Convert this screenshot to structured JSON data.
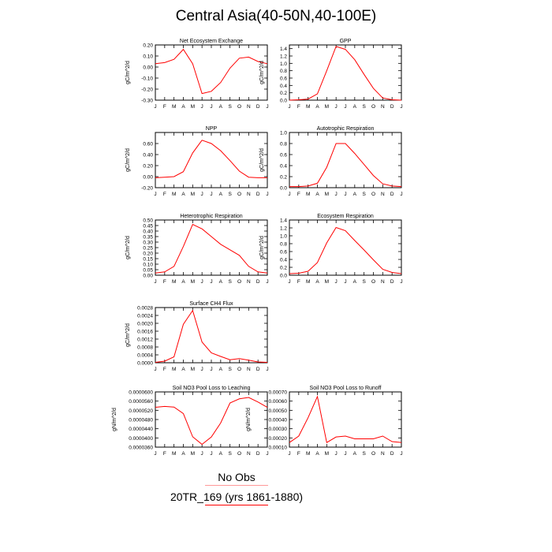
{
  "title": "Central Asia(40-50N,40-100E)",
  "month_labels": [
    "J",
    "F",
    "M",
    "A",
    "M",
    "J",
    "J",
    "A",
    "S",
    "O",
    "N",
    "D",
    "J"
  ],
  "legend": {
    "obs_label": "No Obs",
    "model_label": "20TR_169 (yrs 1861-1880)",
    "line_color": "#ff0000"
  },
  "chart_data": [
    {
      "type": "line",
      "title": "Net Ecosystem Exchange",
      "ylabel": "gC/m^2/d",
      "ylim": [
        -0.3,
        0.2
      ],
      "yticks": [
        -0.3,
        -0.2,
        -0.1,
        0.0,
        0.1,
        0.2
      ],
      "ytick_labels": [
        "-0.30",
        "-0.20",
        "-0.10",
        "0.00",
        "0.10",
        "0.20"
      ],
      "x": [
        1,
        2,
        3,
        4,
        5,
        6,
        7,
        8,
        9,
        10,
        11,
        12,
        13
      ],
      "series": [
        {
          "values": [
            0.03,
            0.04,
            0.07,
            0.16,
            0.03,
            -0.24,
            -0.22,
            -0.14,
            -0.01,
            0.08,
            0.09,
            0.05,
            0.03
          ]
        }
      ]
    },
    {
      "type": "line",
      "title": "GPP",
      "ylabel": "gC/m^2/d",
      "ylim": [
        0.0,
        1.5
      ],
      "yticks": [
        0.0,
        0.2,
        0.4,
        0.6,
        0.8,
        1.0,
        1.2,
        1.4
      ],
      "ytick_labels": [
        "0.0",
        "0.2",
        "0.4",
        "0.6",
        "0.8",
        "1.0",
        "1.2",
        "1.4"
      ],
      "x": [
        1,
        2,
        3,
        4,
        5,
        6,
        7,
        8,
        9,
        10,
        11,
        12,
        13
      ],
      "series": [
        {
          "values": [
            0.0,
            0.01,
            0.03,
            0.17,
            0.8,
            1.46,
            1.38,
            1.1,
            0.7,
            0.32,
            0.06,
            0.01,
            0.0
          ]
        }
      ]
    },
    {
      "type": "line",
      "title": "NPP",
      "ylabel": "gC/m^2/d",
      "ylim": [
        -0.2,
        0.8
      ],
      "yticks": [
        -0.2,
        0.0,
        0.2,
        0.4,
        0.6
      ],
      "ytick_labels": [
        "-0.20",
        "0.00",
        "0.20",
        "0.40",
        "0.60"
      ],
      "x": [
        1,
        2,
        3,
        4,
        5,
        6,
        7,
        8,
        9,
        10,
        11,
        12,
        13
      ],
      "series": [
        {
          "values": [
            -0.02,
            -0.01,
            0.0,
            0.09,
            0.43,
            0.66,
            0.6,
            0.47,
            0.29,
            0.1,
            -0.01,
            -0.02,
            -0.02
          ]
        }
      ]
    },
    {
      "type": "line",
      "title": "Autotrophic Respiration",
      "ylabel": "gC/m^2/d",
      "ylim": [
        0.0,
        1.0
      ],
      "yticks": [
        0.0,
        0.2,
        0.4,
        0.6,
        0.8,
        1.0
      ],
      "ytick_labels": [
        "0.0",
        "0.2",
        "0.4",
        "0.6",
        "0.8",
        "1.0"
      ],
      "x": [
        1,
        2,
        3,
        4,
        5,
        6,
        7,
        8,
        9,
        10,
        11,
        12,
        13
      ],
      "series": [
        {
          "values": [
            0.02,
            0.02,
            0.03,
            0.08,
            0.37,
            0.8,
            0.8,
            0.62,
            0.42,
            0.22,
            0.07,
            0.03,
            0.02
          ]
        }
      ]
    },
    {
      "type": "line",
      "title": "Heterotrophic Respiration",
      "ylabel": "gC/m^2/d",
      "ylim": [
        0.0,
        0.5
      ],
      "yticks": [
        0.0,
        0.05,
        0.1,
        0.15,
        0.2,
        0.25,
        0.3,
        0.35,
        0.4,
        0.45,
        0.5
      ],
      "ytick_labels": [
        "0.00",
        "0.05",
        "0.10",
        "0.15",
        "0.20",
        "0.25",
        "0.30",
        "0.35",
        "0.40",
        "0.45",
        "0.50"
      ],
      "x": [
        1,
        2,
        3,
        4,
        5,
        6,
        7,
        8,
        9,
        10,
        11,
        12,
        13
      ],
      "series": [
        {
          "values": [
            0.02,
            0.03,
            0.08,
            0.26,
            0.46,
            0.42,
            0.35,
            0.28,
            0.23,
            0.18,
            0.08,
            0.03,
            0.02
          ]
        }
      ]
    },
    {
      "type": "line",
      "title": "Ecosystem Respiration",
      "ylabel": "gC/m^2/d",
      "ylim": [
        0.0,
        1.4
      ],
      "yticks": [
        0.0,
        0.2,
        0.4,
        0.6,
        0.8,
        1.0,
        1.2,
        1.4
      ],
      "ytick_labels": [
        "0.0",
        "0.2",
        "0.4",
        "0.6",
        "0.8",
        "1.0",
        "1.2",
        "1.4"
      ],
      "x": [
        1,
        2,
        3,
        4,
        5,
        6,
        7,
        8,
        9,
        10,
        11,
        12,
        13
      ],
      "series": [
        {
          "values": [
            0.04,
            0.05,
            0.1,
            0.32,
            0.82,
            1.21,
            1.13,
            0.88,
            0.64,
            0.39,
            0.15,
            0.07,
            0.04
          ]
        }
      ]
    },
    {
      "type": "line",
      "title": "Surface CH4 Flux",
      "ylabel": "gC/m^2/d",
      "ylim": [
        0.0,
        0.0028
      ],
      "yticks": [
        0.0,
        0.0004,
        0.0008,
        0.0012,
        0.0016,
        0.002,
        0.0024,
        0.0028
      ],
      "ytick_labels": [
        "0.0000",
        "0.0004",
        "0.0008",
        "0.0012",
        "0.0016",
        "0.0020",
        "0.0024",
        "0.0028"
      ],
      "x": [
        1,
        2,
        3,
        4,
        5,
        6,
        7,
        8,
        9,
        10,
        11,
        12,
        13
      ],
      "series": [
        {
          "values": [
            2e-05,
            8e-05,
            0.0003,
            0.00195,
            0.00265,
            0.00105,
            0.0005,
            0.00032,
            0.00015,
            0.00021,
            0.00013,
            4e-05,
            2e-05
          ]
        }
      ]
    },
    {
      "type": "line",
      "title": "Soil NO3 Pool Loss to Leaching",
      "ylabel": "gN/m^2/d",
      "ylim": [
        3.6e-05,
        6e-05
      ],
      "yticks": [
        3.6e-05,
        4e-05,
        4.4e-05,
        4.8e-05,
        5.2e-05,
        5.6e-05,
        6e-05
      ],
      "ytick_labels": [
        "0.0000360",
        "0.0000400",
        "0.0000440",
        "0.0000480",
        "0.0000520",
        "0.0000560",
        "0.0000600"
      ],
      "x": [
        1,
        2,
        3,
        4,
        5,
        6,
        7,
        8,
        9,
        10,
        11,
        12,
        13
      ],
      "series": [
        {
          "values": [
            5.33e-05,
            5.37e-05,
            5.34e-05,
            5.06e-05,
            4.05e-05,
            3.72e-05,
            4.04e-05,
            4.65e-05,
            5.52e-05,
            5.7e-05,
            5.76e-05,
            5.56e-05,
            5.33e-05
          ]
        }
      ]
    },
    {
      "type": "line",
      "title": "Soil NO3 Pool Loss to Runoff",
      "ylabel": "gN/m^2/d",
      "ylim": [
        0.0001,
        0.0007
      ],
      "yticks": [
        0.0001,
        0.0002,
        0.0003,
        0.0004,
        0.0005,
        0.0006,
        0.0007
      ],
      "ytick_labels": [
        "0.00010",
        "0.00020",
        "0.00030",
        "0.00040",
        "0.00050",
        "0.00060",
        "0.00070"
      ],
      "x": [
        1,
        2,
        3,
        4,
        5,
        6,
        7,
        8,
        9,
        10,
        11,
        12,
        13
      ],
      "series": [
        {
          "values": [
            0.00015,
            0.00022,
            0.00042,
            0.00065,
            0.00015,
            0.00021,
            0.00022,
            0.00019,
            0.00019,
            0.00019,
            0.00022,
            0.00016,
            0.00015
          ]
        }
      ]
    }
  ]
}
